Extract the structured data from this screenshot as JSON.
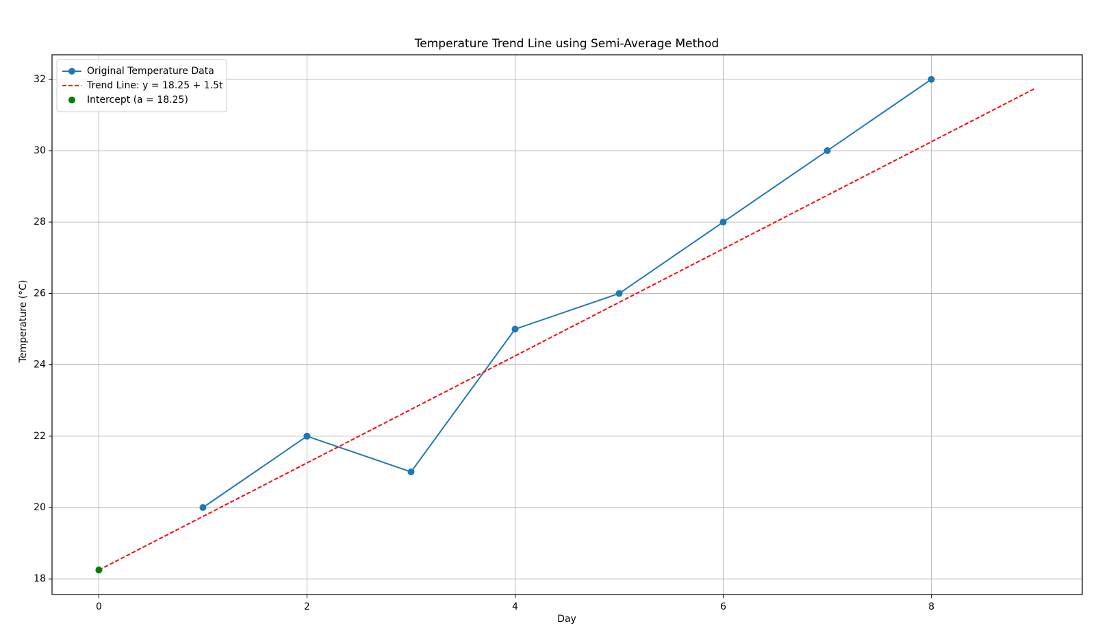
{
  "chart_data": {
    "type": "line",
    "title": "Temperature Trend Line using Semi-Average Method",
    "x_label": "Day",
    "y_label": "Temperature (°C)",
    "xlim": [
      -0.45,
      9.45
    ],
    "xticks": [
      0,
      2,
      4,
      6,
      8
    ],
    "ylim": [
      17.5625,
      32.6875
    ],
    "yticks": [
      18,
      20,
      22,
      24,
      26,
      28,
      30,
      32
    ],
    "grid": true,
    "legend": "upper left",
    "series": [
      {
        "name": "Original Temperature Data",
        "color": "#1f77b4",
        "linestyle": "solid",
        "marker": true,
        "x": [
          1,
          2,
          3,
          4,
          5,
          6,
          7,
          8
        ],
        "values": [
          20,
          22,
          21,
          25,
          26,
          28,
          30,
          32
        ]
      },
      {
        "name": "Trend Line: y = 18.25 + 1.5t",
        "color": "#ff0000",
        "linestyle": "dashed",
        "marker": false,
        "x": [
          0,
          9
        ],
        "values": [
          18.25,
          31.75
        ]
      },
      {
        "name": "Intercept (a = 18.25)",
        "color": "#008000",
        "linestyle": "none",
        "marker": true,
        "x": [
          0
        ],
        "values": [
          18.25
        ]
      }
    ]
  }
}
